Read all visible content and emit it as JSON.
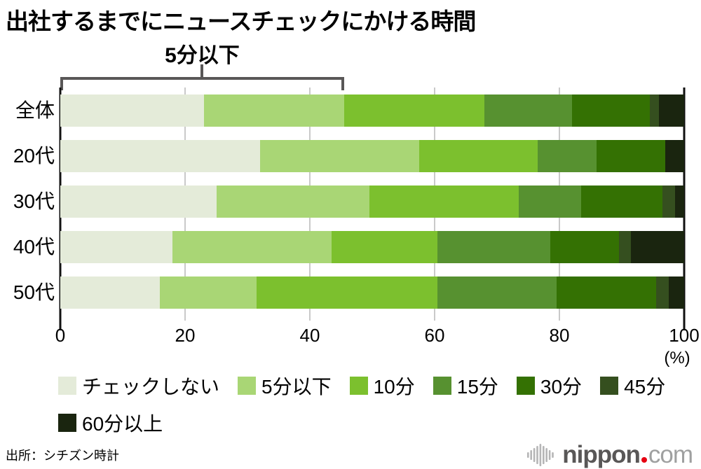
{
  "title": "出社するまでにニュースチェックにかける時間",
  "annotation": {
    "label": "5分以下",
    "span_pct": 45.5
  },
  "chart_data": {
    "type": "bar",
    "stacked": true,
    "orientation": "horizontal",
    "categories": [
      "全体",
      "20代",
      "30代",
      "40代",
      "50代"
    ],
    "series": [
      {
        "name": "チェックしない",
        "color": "#e4ebd9",
        "values": [
          23.0,
          32.0,
          25.0,
          18.0,
          16.0
        ]
      },
      {
        "name": "5分以下",
        "color": "#a9d675",
        "values": [
          22.5,
          25.5,
          24.5,
          25.5,
          15.5
        ]
      },
      {
        "name": "10分",
        "color": "#7cc02e",
        "values": [
          22.5,
          19.0,
          24.0,
          17.0,
          29.0
        ]
      },
      {
        "name": "15分",
        "color": "#579130",
        "values": [
          14.0,
          9.5,
          10.0,
          18.0,
          19.0
        ]
      },
      {
        "name": "30分",
        "color": "#347103",
        "values": [
          12.5,
          11.0,
          13.0,
          11.0,
          16.0
        ]
      },
      {
        "name": "45分",
        "color": "#354f1f",
        "values": [
          1.5,
          0.0,
          2.0,
          2.0,
          2.0
        ]
      },
      {
        "name": "60分以上",
        "color": "#1a250f",
        "values": [
          4.0,
          3.0,
          1.5,
          8.5,
          2.5
        ]
      }
    ],
    "xlim": [
      0,
      100
    ],
    "x_ticks": [
      0,
      20,
      40,
      60,
      80,
      100
    ],
    "x_unit": "(%)",
    "grid": true,
    "legend_position": "bottom"
  },
  "footer": {
    "source": "出所：シチズン時計"
  },
  "logo": {
    "name": "nippon",
    "tld": "com",
    "dot_color": "#e60012"
  }
}
